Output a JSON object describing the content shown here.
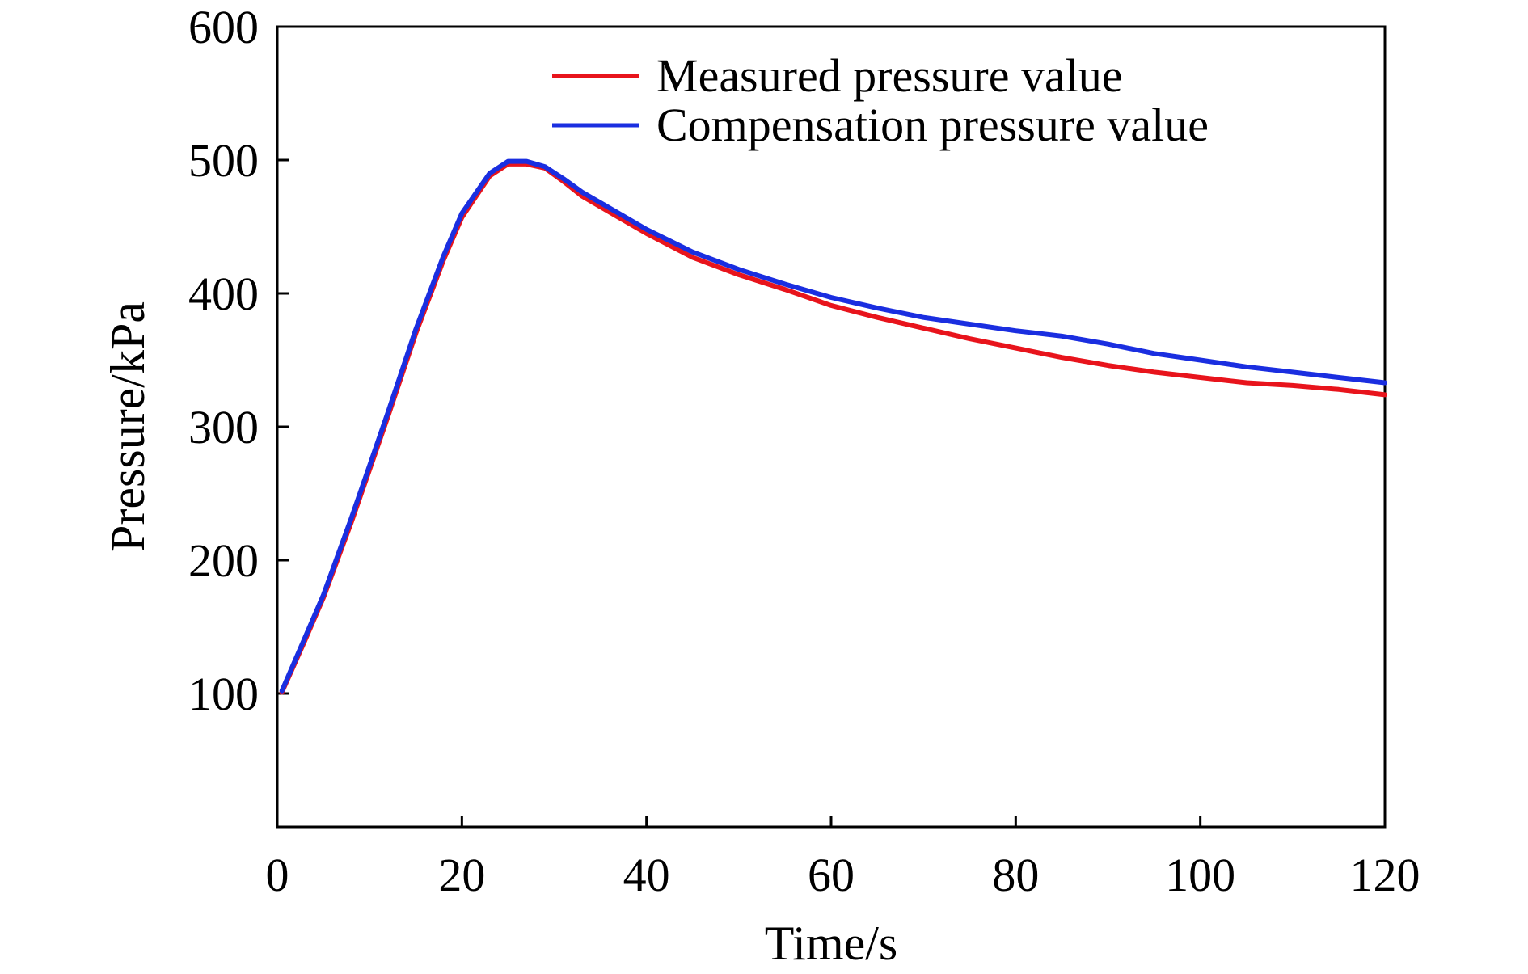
{
  "chart_data": {
    "type": "line",
    "title": "",
    "xlabel": "Time/s",
    "ylabel": "Pressure/kPa",
    "xlim": [
      0,
      120
    ],
    "ylim": [
      0,
      600
    ],
    "xticks": [
      0,
      20,
      40,
      60,
      80,
      100,
      120
    ],
    "yticks": [
      100,
      200,
      300,
      400,
      500,
      600
    ],
    "grid": false,
    "legend_position": "top-right",
    "series": [
      {
        "name": "Measured pressure value",
        "color": "#e8141c",
        "x": [
          0.5,
          3,
          5,
          8,
          10,
          12,
          15,
          18,
          20,
          23,
          25,
          27,
          29,
          31,
          33,
          36,
          40,
          45,
          50,
          55,
          60,
          65,
          70,
          75,
          80,
          85,
          90,
          95,
          100,
          105,
          110,
          115,
          120
        ],
        "values": [
          101,
          140,
          172,
          228,
          268,
          308,
          370,
          425,
          457,
          488,
          497,
          497,
          494,
          484,
          473,
          461,
          445,
          427,
          414,
          403,
          391,
          382,
          374,
          366,
          359,
          352,
          346,
          341,
          337,
          333,
          331,
          328,
          324
        ]
      },
      {
        "name": "Compensation pressure value",
        "color": "#1a2ee0",
        "x": [
          0.5,
          3,
          5,
          8,
          10,
          12,
          15,
          18,
          20,
          23,
          25,
          27,
          29,
          31,
          33,
          36,
          40,
          45,
          50,
          55,
          60,
          65,
          70,
          75,
          80,
          85,
          90,
          95,
          100,
          105,
          110,
          115,
          120
        ],
        "values": [
          102,
          142,
          174,
          231,
          271,
          311,
          373,
          428,
          460,
          490,
          499,
          499,
          495,
          486,
          476,
          464,
          448,
          431,
          418,
          407,
          397,
          389,
          382,
          377,
          372,
          368,
          362,
          355,
          350,
          345,
          341,
          337,
          333
        ]
      }
    ]
  }
}
